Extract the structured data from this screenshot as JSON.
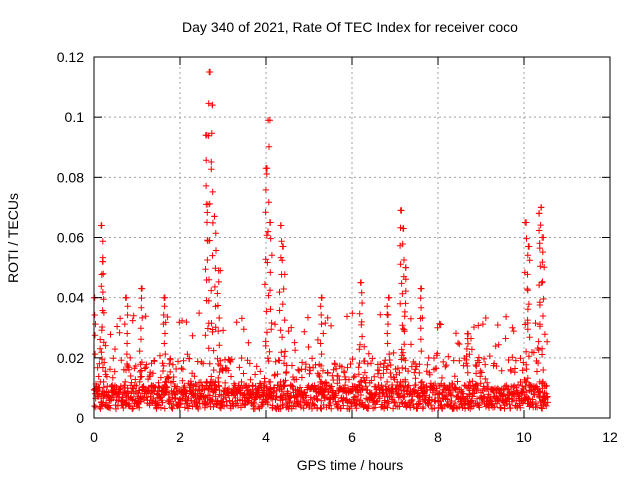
{
  "chart_data": {
    "type": "scatter",
    "title": "Day 340 of 2021, Rate Of TEC Index for receiver coco",
    "xlabel": "GPS time / hours",
    "ylabel": "ROTI / TECUs",
    "xlim": [
      0,
      12
    ],
    "ylim": [
      0,
      0.12
    ],
    "xticks": [
      0,
      2,
      4,
      6,
      8,
      10,
      12
    ],
    "xtick_labels": [
      "0",
      "2",
      "4",
      "6",
      "8",
      "10",
      "12"
    ],
    "yticks": [
      0,
      0.02,
      0.04,
      0.06,
      0.08,
      0.1,
      0.12
    ],
    "ytick_labels": [
      "0",
      "0.02",
      "0.04",
      "0.06",
      "0.08",
      "0.1",
      "0.12"
    ],
    "grid": true,
    "marker": "+",
    "color": "#ff0000",
    "data_extent_hours": [
      0,
      10.55
    ],
    "baseline_range": [
      0.003,
      0.02
    ],
    "peaks": [
      {
        "x": 0.0,
        "y": 0.04
      },
      {
        "x": 0.18,
        "y": 0.064
      },
      {
        "x": 0.2,
        "y": 0.052
      },
      {
        "x": 0.75,
        "y": 0.04
      },
      {
        "x": 1.1,
        "y": 0.043
      },
      {
        "x": 1.65,
        "y": 0.04
      },
      {
        "x": 2.6,
        "y": 0.094
      },
      {
        "x": 2.65,
        "y": 0.071
      },
      {
        "x": 2.7,
        "y": 0.115
      },
      {
        "x": 2.75,
        "y": 0.104
      },
      {
        "x": 2.8,
        "y": 0.067
      },
      {
        "x": 2.9,
        "y": 0.049
      },
      {
        "x": 4.0,
        "y": 0.083
      },
      {
        "x": 4.05,
        "y": 0.099
      },
      {
        "x": 4.1,
        "y": 0.065
      },
      {
        "x": 4.35,
        "y": 0.064
      },
      {
        "x": 4.4,
        "y": 0.057
      },
      {
        "x": 5.3,
        "y": 0.04
      },
      {
        "x": 6.2,
        "y": 0.045
      },
      {
        "x": 6.85,
        "y": 0.04
      },
      {
        "x": 7.15,
        "y": 0.069
      },
      {
        "x": 7.2,
        "y": 0.063
      },
      {
        "x": 7.25,
        "y": 0.05
      },
      {
        "x": 7.6,
        "y": 0.043
      },
      {
        "x": 8.7,
        "y": 0.028
      },
      {
        "x": 10.05,
        "y": 0.065
      },
      {
        "x": 10.1,
        "y": 0.057
      },
      {
        "x": 10.35,
        "y": 0.068
      },
      {
        "x": 10.4,
        "y": 0.07
      },
      {
        "x": 10.45,
        "y": 0.06
      }
    ]
  }
}
